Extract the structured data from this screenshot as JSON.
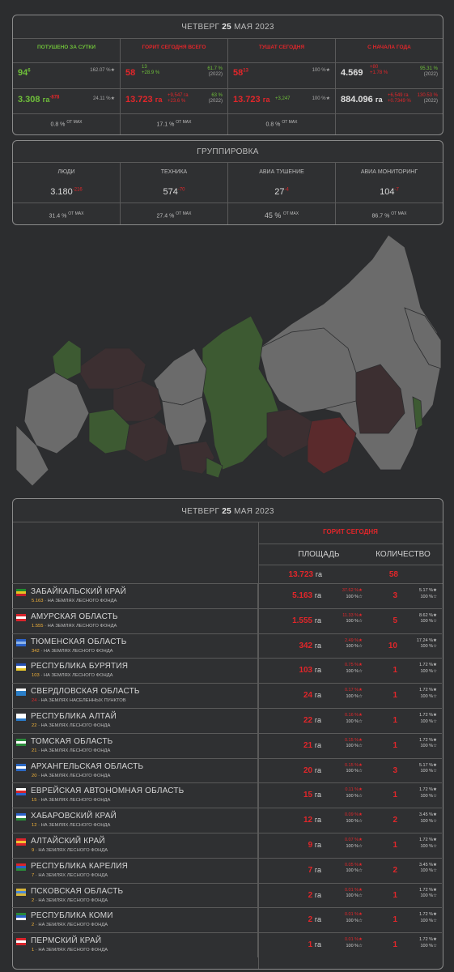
{
  "header": {
    "day": "ЧЕТВЕРГ",
    "date": "25",
    "month_year": "МАЯ 2023"
  },
  "summary": {
    "columns": [
      {
        "title": "ПОТУШЕНО ЗА СУТКИ",
        "color": "#6fbf3a"
      },
      {
        "title": "ГОРИТ СЕГОДНЯ ВСЕГО",
        "color": "#e2262a"
      },
      {
        "title": "ТУШАТ СЕГОДНЯ",
        "color": "#e2262a"
      },
      {
        "title": "С НАЧАЛА ГОДА",
        "color": "#e2262a"
      }
    ],
    "row1": [
      {
        "value": "94",
        "delta": "6",
        "side1": "162.07 %★",
        "side2": ""
      },
      {
        "value": "58",
        "delta": "13",
        "side1": "+3,6 %",
        "side2": "+28.9 %",
        "right1": "61.7 %",
        "right2": "(2022)"
      },
      {
        "value": "58",
        "delta": "13",
        "side1": "100 %★"
      },
      {
        "value": "4.569",
        "delta": "",
        "side1": "+80",
        "side2": "+1.78 %",
        "right1": "95.31 %",
        "right2": "(2022)"
      }
    ],
    "row2": [
      {
        "value": "3.308",
        "unit": "га",
        "delta": "-878",
        "side1": "24.11 %★"
      },
      {
        "value": "13.723",
        "unit": "га",
        "side1": "+9,547 га",
        "side2": "+23.6 %",
        "right1": "63 %",
        "right2": "(2022)"
      },
      {
        "value": "13.723",
        "unit": "га",
        "delta": "+3,247",
        "side1": "100 %★"
      },
      {
        "value": "884.096",
        "unit": "га",
        "side1": "+6,549 га",
        "side2": "+0.7349 %",
        "right1": "130.53 %",
        "right2": "(2022)"
      }
    ],
    "row3": [
      "0.8 %",
      "17.1 %",
      "0.8 %",
      ""
    ],
    "ofmax": "ОТ MAX"
  },
  "group": {
    "title": "ГРУППИРОВКА",
    "columns": [
      {
        "label": "ЛЮДИ",
        "value": "3.180",
        "delta": "-216",
        "pct": "31.4 %"
      },
      {
        "label": "ТЕХНИКА",
        "value": "574",
        "delta": "-70",
        "pct": "27.4 %"
      },
      {
        "label": "АВИА ТУШЕНИЕ",
        "value": "27",
        "delta": "-4",
        "pct": "45 %"
      },
      {
        "label": "АВИА МОНИТОРИНГ",
        "value": "104",
        "delta": "-7",
        "pct": "86.7 %"
      }
    ],
    "ofmax": "ОТ MAX"
  },
  "table": {
    "burning_today": "ГОРИТ СЕГОДНЯ",
    "area_header": "ПЛОЩАДЬ",
    "count_header": "КОЛИЧЕСТВО",
    "total_area": "13.723",
    "total_unit": "га",
    "total_count": "58",
    "unit": "га",
    "rows": [
      {
        "name": "ЗАБАЙКАЛЬСКИЙ КРАЙ",
        "sub_num": "5.163",
        "sub_text": "НА ЗЕМЛЯХ ЛЕСНОГО ФОНДА",
        "area": "5.163",
        "apct1": "37.62 %★",
        "apct2": "100 %☆",
        "count": "3",
        "cpct1": "5.17 %★",
        "cpct2": "100 %☆",
        "flag": [
          "#1f8a2e",
          "#e7c321",
          "#c0202b"
        ]
      },
      {
        "name": "АМУРСКАЯ ОБЛАСТЬ",
        "sub_num": "1.555",
        "sub_text": "НА ЗЕМЛЯХ ЛЕСНОГО ФОНДА",
        "area": "1.555",
        "apct1": "11.33 %★",
        "apct2": "100 %☆",
        "count": "5",
        "cpct1": "8.62 %★",
        "cpct2": "100 %☆",
        "flag": [
          "#d9242b",
          "#ffffff",
          "#d9242b"
        ]
      },
      {
        "name": "ТЮМЕНСКАЯ ОБЛАСТЬ",
        "sub_num": "342",
        "sub_text": "НА ЗЕМЛЯХ ЛЕСНОГО ФОНДА",
        "area": "342",
        "apct1": "2.49 %★",
        "apct2": "100 %☆",
        "count": "10",
        "cpct1": "17.24 %★",
        "cpct2": "100 %☆",
        "flag": [
          "#2b62c9",
          "#8fb5e8",
          "#2b62c9"
        ]
      },
      {
        "name": "РЕСПУБЛИКА БУРЯТИЯ",
        "sub_num": "103",
        "sub_text": "НА ЗЕМЛЯХ ЛЕСНОГО ФОНДА",
        "area": "103",
        "apct1": "0.75 %★",
        "apct2": "100 %☆",
        "count": "1",
        "cpct1": "1.72 %★",
        "cpct2": "100 %☆",
        "flag": [
          "#2550b3",
          "#ffffff",
          "#e8c72b"
        ]
      },
      {
        "name": "СВЕРДЛОВСКАЯ ОБЛАСТЬ",
        "sub_num": "24",
        "sub_text": "НА ЗЕМЛЯХ НАСЕЛЕННЫХ ПУНКТОВ",
        "area": "24",
        "apct1": "0.17 %★",
        "apct2": "100 %☆",
        "count": "1",
        "cpct1": "1.72 %★",
        "cpct2": "100 %☆",
        "flag": [
          "#ffffff",
          "#2b7fc9",
          "#2b7fc9"
        ],
        "sub_red": true
      },
      {
        "name": "РЕСПУБЛИКА АЛТАЙ",
        "sub_num": "22",
        "sub_text": "НА ЗЕМЛЯХ ЛЕСНОГО ФОНДА",
        "area": "22",
        "apct1": "0.16 %★",
        "apct2": "100 %☆",
        "count": "1",
        "cpct1": "1.72 %★",
        "cpct2": "100 %☆",
        "flag": [
          "#ffffff",
          "#ffffff",
          "#2a79c6"
        ]
      },
      {
        "name": "ТОМСКАЯ ОБЛАСТЬ",
        "sub_num": "21",
        "sub_text": "НА ЗЕМЛЯХ ЛЕСНОГО ФОНДА",
        "area": "21",
        "apct1": "0.15 %★",
        "apct2": "100 %☆",
        "count": "1",
        "cpct1": "1.72 %★",
        "cpct2": "100 %☆",
        "flag": [
          "#2a8a3a",
          "#ffffff",
          "#2a8a3a"
        ]
      },
      {
        "name": "АРХАНГЕЛЬСКАЯ ОБЛАСТЬ",
        "sub_num": "20",
        "sub_text": "НА ЗЕМЛЯХ ЛЕСНОГО ФОНДА",
        "area": "20",
        "apct1": "0.15 %★",
        "apct2": "100 %☆",
        "count": "3",
        "cpct1": "5.17 %★",
        "cpct2": "100 %☆",
        "flag": [
          "#2b68c4",
          "#ffffff",
          "#2b68c4"
        ]
      },
      {
        "name": "ЕВРЕЙСКАЯ АВТОНОМНАЯ ОБЛАСТЬ",
        "sub_num": "15",
        "sub_text": "НА ЗЕМЛЯХ ЛЕСНОГО ФОНДА",
        "area": "15",
        "apct1": "0.11 %★",
        "apct2": "100 %☆",
        "count": "1",
        "cpct1": "1.72 %★",
        "cpct2": "100 %☆",
        "flag": [
          "#ffffff",
          "#d9242b",
          "#2b62c9"
        ]
      },
      {
        "name": "ХАБАРОВСКИЙ КРАЙ",
        "sub_num": "12",
        "sub_text": "НА ЗЕМЛЯХ ЛЕСНОГО ФОНДА",
        "area": "12",
        "apct1": "0.09 %★",
        "apct2": "100 %☆",
        "count": "2",
        "cpct1": "3.45 %★",
        "cpct2": "100 %☆",
        "flag": [
          "#2b62c9",
          "#ffffff",
          "#2a8a3a"
        ]
      },
      {
        "name": "АЛТАЙСКИЙ КРАЙ",
        "sub_num": "9",
        "sub_text": "НА ЗЕМЛЯХ ЛЕСНОГО ФОНДА",
        "area": "9",
        "apct1": "0.07 %★",
        "apct2": "100 %☆",
        "count": "1",
        "cpct1": "1.72 %★",
        "cpct2": "100 %☆",
        "flag": [
          "#d9242b",
          "#f2c233",
          "#d9242b"
        ]
      },
      {
        "name": "РЕСПУБЛИКА КАРЕЛИЯ",
        "sub_num": "7",
        "sub_text": "НА ЗЕМЛЯХ ЛЕСНОГО ФОНДА",
        "area": "7",
        "apct1": "0.05 %★",
        "apct2": "100 %☆",
        "count": "2",
        "cpct1": "3.45 %★",
        "cpct2": "100 %☆",
        "flag": [
          "#d9242b",
          "#2b62c9",
          "#2a8a3a"
        ]
      },
      {
        "name": "ПСКОВСКАЯ ОБЛАСТЬ",
        "sub_num": "2",
        "sub_text": "НА ЗЕМЛЯХ ЛЕСНОГО ФОНДА",
        "area": "2",
        "apct1": "0.01 %★",
        "apct2": "100 %☆",
        "count": "1",
        "cpct1": "1.72 %★",
        "cpct2": "100 %☆",
        "flag": [
          "#d6b53a",
          "#4d8ad3",
          "#d6b53a"
        ]
      },
      {
        "name": "РЕСПУБЛИКА КОМИ",
        "sub_num": "2",
        "sub_text": "НА ЗЕМЛЯХ ЛЕСНОГО ФОНДА",
        "area": "2",
        "apct1": "0.01 %★",
        "apct2": "100 %☆",
        "count": "1",
        "cpct1": "1.72 %★",
        "cpct2": "100 %☆",
        "flag": [
          "#2a8a3a",
          "#2b62c9",
          "#ffffff"
        ]
      },
      {
        "name": "ПЕРМСКИЙ КРАЙ",
        "sub_num": "1",
        "sub_text": "НА ЗЕМЛЯХ ЛЕСНОГО ФОНДА",
        "area": "1",
        "apct1": "0.01 %★",
        "apct2": "100 %☆",
        "count": "1",
        "cpct1": "1.72 %★",
        "cpct2": "100 %☆",
        "flag": [
          "#d9242b",
          "#ffffff",
          "#d9242b"
        ]
      }
    ]
  },
  "map": {
    "colors": {
      "none": "#6b6b6b",
      "green": "#3d5a32",
      "dark": "#3c2f31",
      "red": "#5a2a2c"
    }
  }
}
